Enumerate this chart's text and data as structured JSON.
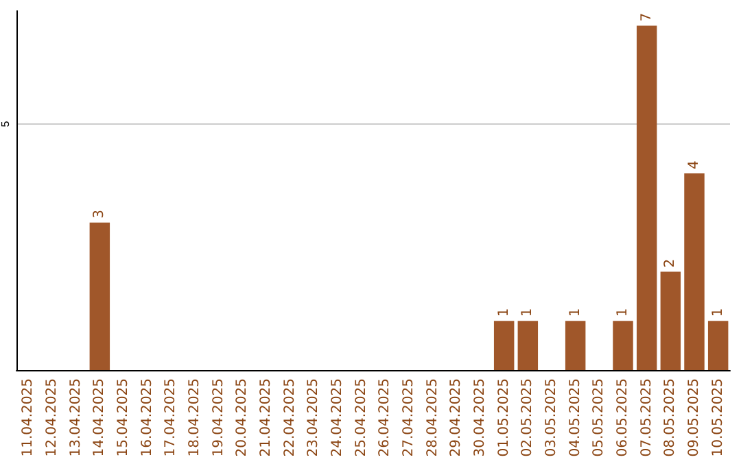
{
  "chart_data": {
    "type": "bar",
    "categories": [
      "11.04.2025",
      "12.04.2025",
      "13.04.2025",
      "14.04.2025",
      "15.04.2025",
      "16.04.2025",
      "17.04.2025",
      "18.04.2025",
      "19.04.2025",
      "20.04.2025",
      "21.04.2025",
      "22.04.2025",
      "23.04.2025",
      "24.04.2025",
      "25.04.2025",
      "26.04.2025",
      "27.04.2025",
      "28.04.2025",
      "29.04.2025",
      "30.04.2025",
      "01.05.2025",
      "02.05.2025",
      "03.05.2025",
      "04.05.2025",
      "05.05.2025",
      "06.05.2025",
      "07.05.2025",
      "08.05.2025",
      "09.05.2025",
      "10.05.2025"
    ],
    "values": [
      0,
      0,
      0,
      3,
      0,
      0,
      0,
      0,
      0,
      0,
      0,
      0,
      0,
      0,
      0,
      0,
      0,
      0,
      0,
      0,
      1,
      1,
      0,
      1,
      0,
      1,
      7,
      2,
      4,
      1
    ],
    "value_labels": [
      null,
      null,
      null,
      "3",
      null,
      null,
      null,
      null,
      null,
      null,
      null,
      null,
      null,
      null,
      null,
      null,
      null,
      null,
      null,
      null,
      "1",
      "1",
      null,
      "1",
      null,
      "1",
      "7",
      "2",
      "4",
      "1"
    ],
    "color": "#a0572a",
    "ylim": [
      0,
      7.3
    ],
    "yticks": [
      5
    ],
    "grid": "y"
  }
}
